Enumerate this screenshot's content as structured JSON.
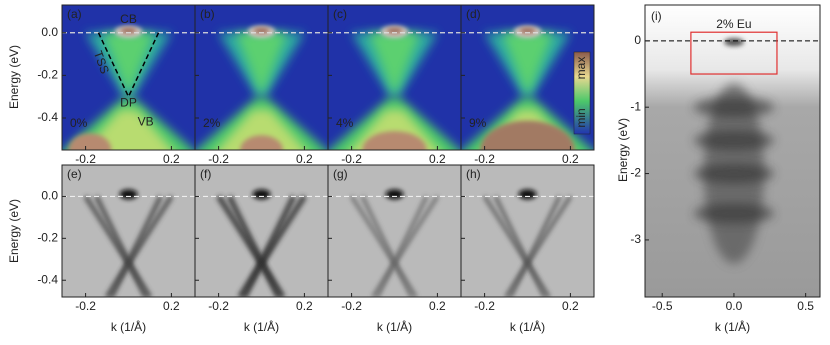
{
  "panels": [
    {
      "label": "(a)",
      "doping": "0%"
    },
    {
      "label": "(b)",
      "doping": "2%"
    },
    {
      "label": "(c)",
      "doping": "4%"
    },
    {
      "label": "(d)",
      "doping": "9%"
    },
    {
      "label": "(e)"
    },
    {
      "label": "(f)"
    },
    {
      "label": "(g)"
    },
    {
      "label": "(h)"
    },
    {
      "label": "(i)",
      "title": "2% Eu"
    }
  ],
  "annotations": {
    "cb": "CB",
    "tss": "TSS",
    "dp": "DP",
    "vb": "VB"
  },
  "colorbar": {
    "max": "max",
    "min": "min"
  },
  "axes": {
    "top": {
      "ylabel": "Energy (eV)",
      "xlim": [
        -0.31,
        0.31
      ],
      "ylim": [
        -0.55,
        0.13
      ],
      "xticks": [
        -0.2,
        0.2
      ],
      "yticks": [
        {
          "value": 0,
          "label": "0.0"
        },
        -0.2,
        -0.4
      ]
    },
    "bottom": {
      "ylabel": "Energy (eV)",
      "xlabel": "k (1/Å)",
      "xlim": [
        -0.31,
        0.31
      ],
      "ylim": [
        -0.48,
        0.15
      ],
      "xticks": [
        -0.2,
        0.2
      ],
      "yticks": [
        {
          "value": 0,
          "label": "0.0"
        },
        -0.2,
        -0.4
      ]
    },
    "right": {
      "ylabel": "Energy (eV)",
      "xlabel": "k (1/Å)",
      "xlim": [
        -0.62,
        0.6
      ],
      "ylim": [
        -3.86,
        0.54
      ],
      "xticks": [
        -0.5,
        {
          "value": 0,
          "label": "0.0"
        },
        0.5
      ],
      "yticks": [
        0,
        -1,
        -2,
        -3
      ]
    }
  }
}
